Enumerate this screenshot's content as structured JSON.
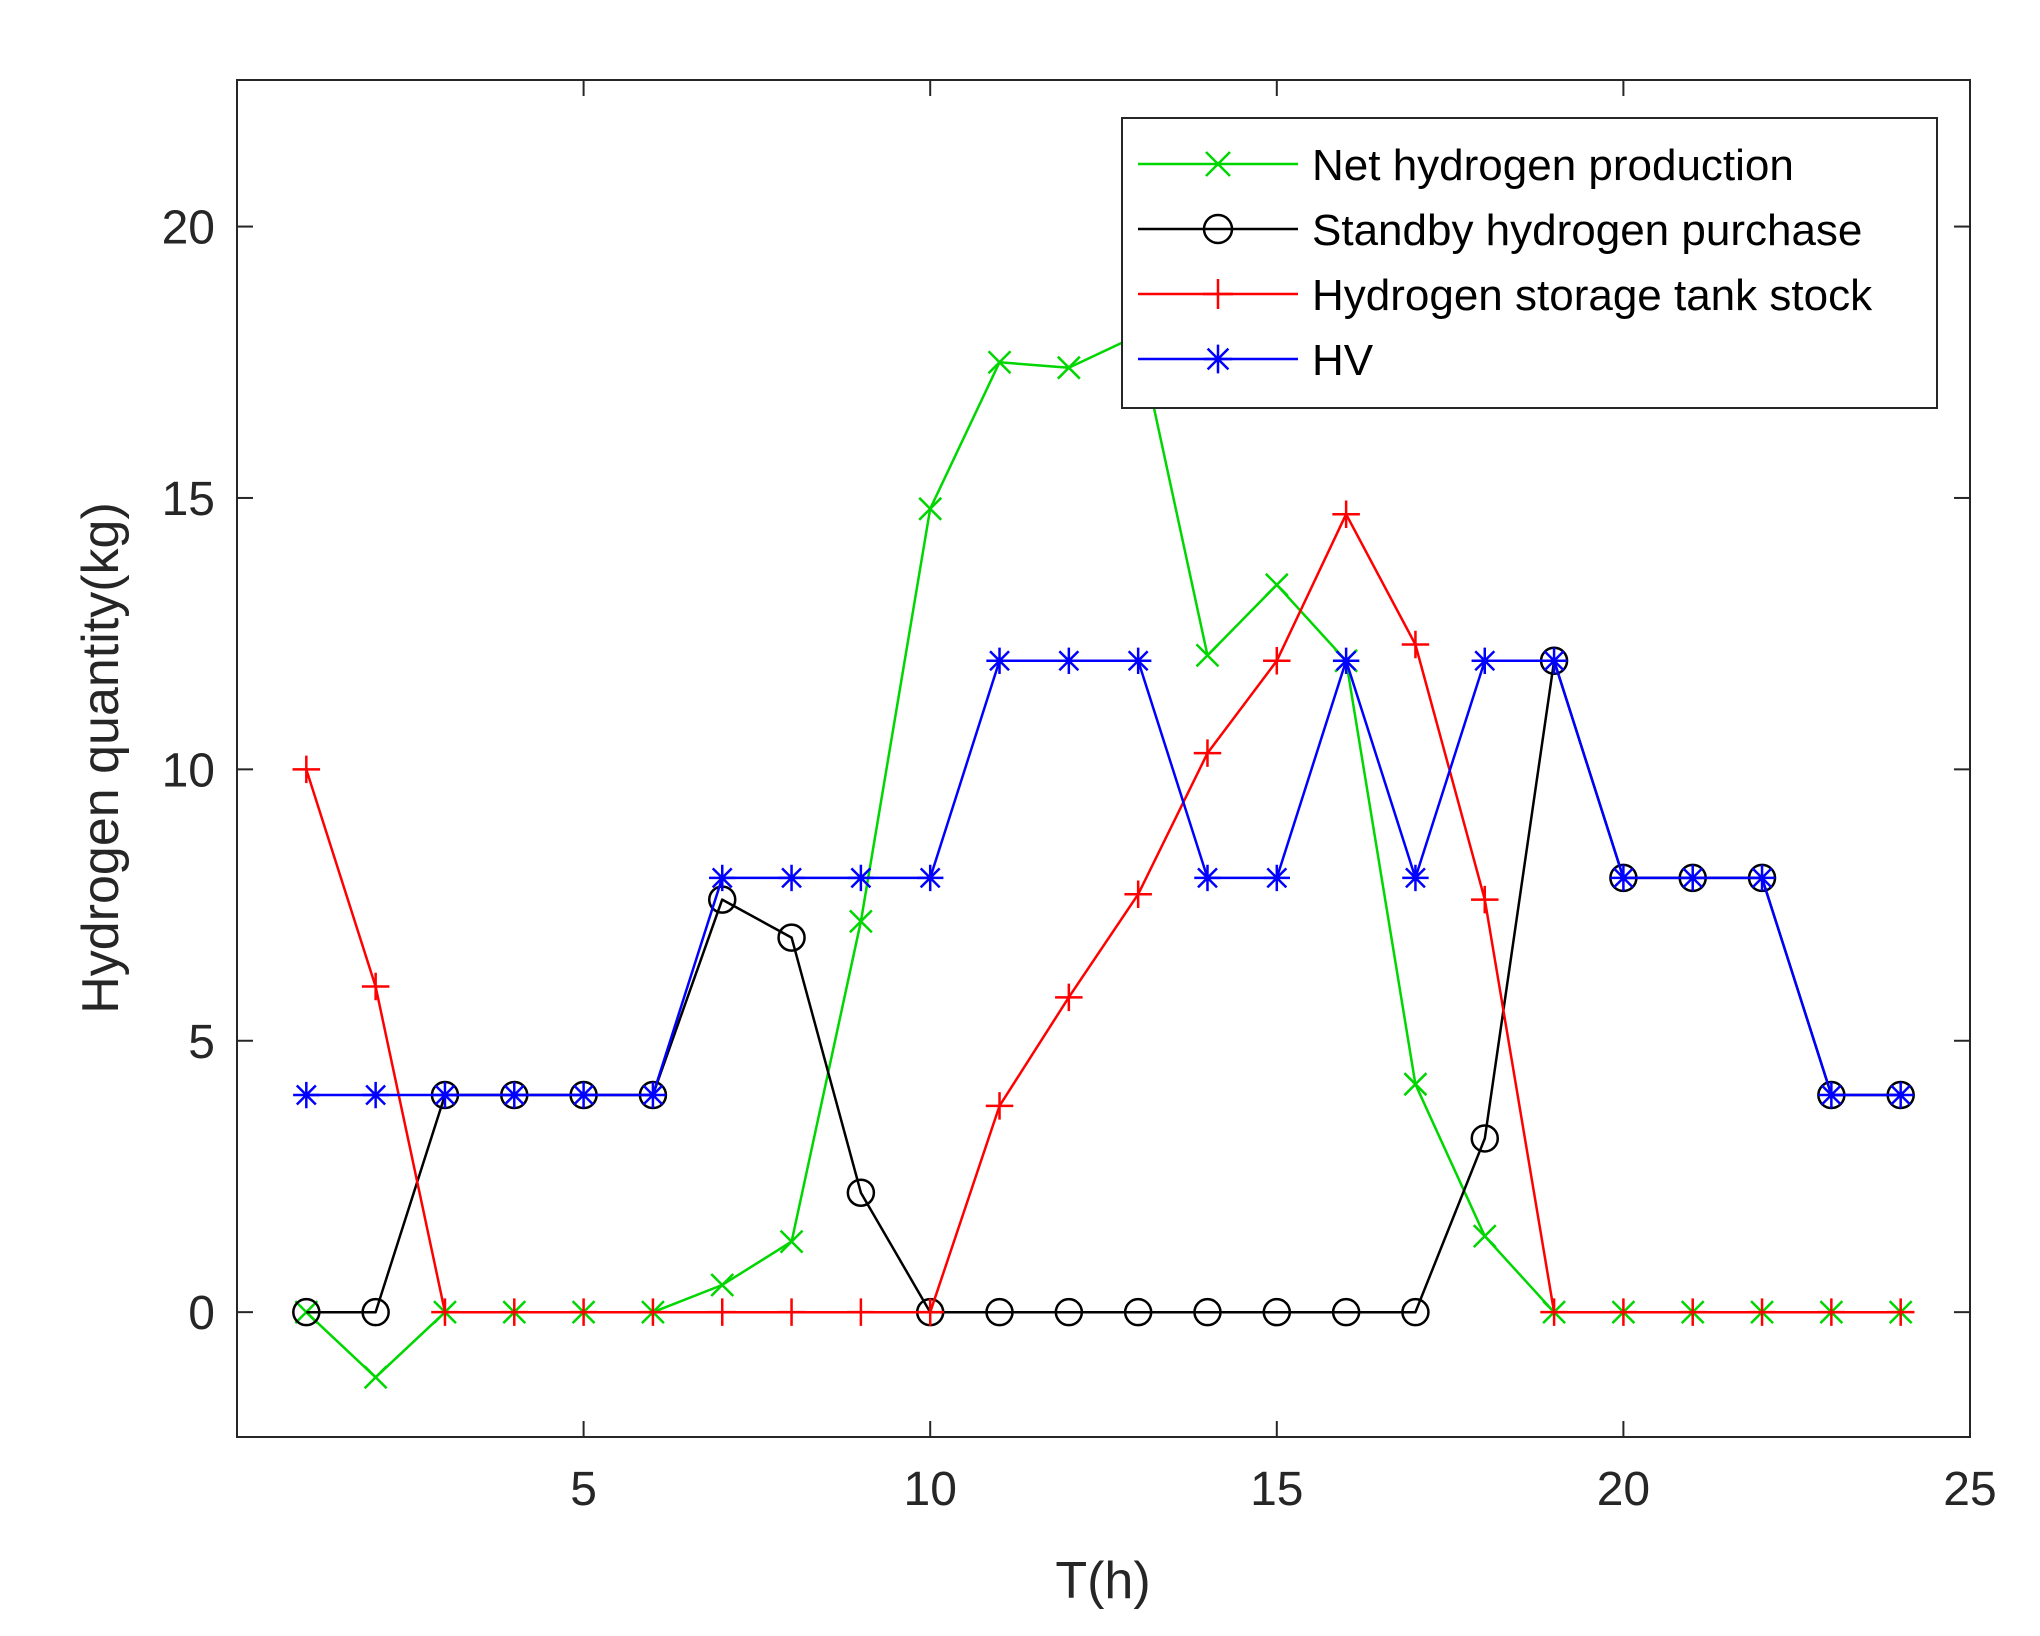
{
  "chart_data": {
    "type": "line",
    "title": "",
    "xlabel": "T(h)",
    "ylabel": "Hydrogen quantity(kg)",
    "xlim": [
      0,
      25
    ],
    "ylim": [
      -2.3,
      22.7
    ],
    "xticks": [
      5,
      10,
      15,
      20,
      25
    ],
    "yticks": [
      0,
      5,
      10,
      15,
      20
    ],
    "grid": false,
    "legend_position": "top-right",
    "x": [
      1,
      2,
      3,
      4,
      5,
      6,
      7,
      8,
      9,
      10,
      11,
      12,
      13,
      14,
      15,
      16,
      17,
      18,
      19,
      20,
      21,
      22,
      23,
      24
    ],
    "series": [
      {
        "name": "Net hydrogen production",
        "color": "#00d600",
        "marker": "x",
        "values": [
          0,
          -1.2,
          0,
          0,
          0,
          0,
          0.5,
          1.3,
          7.2,
          14.8,
          17.5,
          17.4,
          18.0,
          12.1,
          13.4,
          12.0,
          4.2,
          1.4,
          0,
          0,
          0,
          0,
          0,
          0
        ]
      },
      {
        "name": "Standby hydrogen purchase",
        "color": "#000000",
        "marker": "o",
        "values": [
          0,
          0,
          4,
          4,
          4,
          4,
          7.6,
          6.9,
          2.2,
          0,
          0,
          0,
          0,
          0,
          0,
          0,
          0,
          3.2,
          12,
          8,
          8,
          8,
          4,
          4
        ]
      },
      {
        "name": "Hydrogen storage tank stock",
        "color": "#ff0000",
        "marker": "+",
        "values": [
          10,
          6,
          0,
          0,
          0,
          0,
          0,
          0,
          0,
          0,
          3.8,
          5.8,
          7.7,
          10.3,
          12,
          14.7,
          12.3,
          7.6,
          0,
          0,
          0,
          0,
          0,
          0
        ]
      },
      {
        "name": "HV",
        "color": "#0000ff",
        "marker": "*",
        "values": [
          4,
          4,
          4,
          4,
          4,
          4,
          8,
          8,
          8,
          8,
          12,
          12,
          12,
          8,
          8,
          12,
          8,
          12,
          12,
          8,
          8,
          8,
          4,
          4
        ]
      }
    ]
  }
}
